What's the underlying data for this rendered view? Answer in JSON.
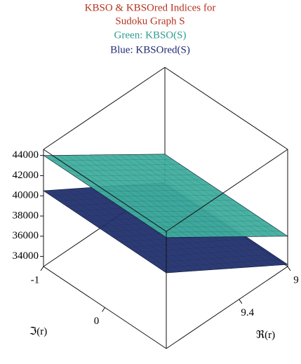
{
  "chart_data": {
    "type": "surface3d",
    "title": [
      "KBSO & KBSOred Indices for",
      "Sudoku Graph S"
    ],
    "subtitle": [
      "Green: KBSO(S)",
      "Blue: KBSOred(S)"
    ],
    "title_color": "#b5331e",
    "subtitle_colors": [
      "#2a9d8f",
      "#1f2a72"
    ],
    "xlabel": "ℜ(r)",
    "ylabel": "ℑ(r)",
    "xlim": [
      9,
      10
    ],
    "ylim": [
      -1,
      1
    ],
    "zlim": [
      33000,
      44600
    ],
    "xticks": [
      9,
      9.4
    ],
    "yticks": [
      -1,
      0
    ],
    "zticks": [
      34000,
      36000,
      38000,
      40000,
      42000,
      44000
    ],
    "x": [
      9,
      10
    ],
    "y": [
      -1,
      1
    ],
    "series": [
      {
        "color": "#22306e",
        "values": [
          [
            33200,
            33200
          ],
          [
            40500,
            40500
          ]
        ]
      },
      {
        "color": "#3fae9e",
        "values": [
          [
            36000,
            36000
          ],
          [
            44000,
            44000
          ]
        ]
      }
    ]
  }
}
